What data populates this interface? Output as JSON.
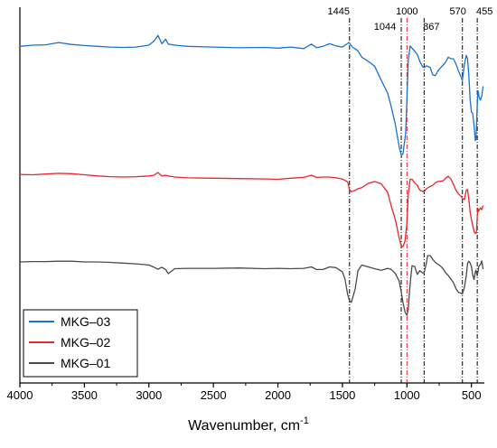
{
  "chart_data": {
    "type": "line",
    "title": "",
    "xlabel": "Wavenumber, cm",
    "xlabel_superscript": "-1",
    "ylabel": "",
    "xlim": [
      4000,
      400
    ],
    "x_reversed": true,
    "x_ticks": [
      4000,
      3500,
      3000,
      2500,
      2000,
      1500,
      1000,
      500
    ],
    "ylim": [
      0,
      100
    ],
    "y_ticks_shown": false,
    "grid": false,
    "legend": {
      "placement": "bottom-left",
      "entries": [
        "MKG–03",
        "MKG–02",
        "MKG–01"
      ]
    },
    "peak_markers": [
      {
        "label": "1445",
        "x": 1445,
        "color": "#000000"
      },
      {
        "label": "1044",
        "x": 1044,
        "color": "#000000"
      },
      {
        "label": "1000",
        "x": 1000,
        "color": "#e8262b"
      },
      {
        "label": "867",
        "x": 867,
        "color": "#000000"
      },
      {
        "label": "570",
        "x": 570,
        "color": "#000000"
      },
      {
        "label": "455",
        "x": 455,
        "color": "#000000"
      }
    ],
    "series": [
      {
        "name": "MKG–03",
        "color": "#1a73cf",
        "x": [
          4000,
          3900,
          3800,
          3700,
          3600,
          3500,
          3400,
          3300,
          3200,
          3100,
          3000,
          2960,
          2930,
          2900,
          2870,
          2850,
          2800,
          2700,
          2500,
          2300,
          2100,
          2000,
          1900,
          1800,
          1740,
          1700,
          1650,
          1600,
          1550,
          1500,
          1450,
          1420,
          1400,
          1380,
          1350,
          1300,
          1250,
          1200,
          1150,
          1120,
          1090,
          1060,
          1044,
          1030,
          1010,
          1000,
          990,
          975,
          960,
          940,
          920,
          900,
          880,
          867,
          850,
          820,
          800,
          780,
          760,
          740,
          720,
          700,
          680,
          660,
          640,
          620,
          600,
          580,
          570,
          555,
          540,
          530,
          520,
          510,
          500,
          490,
          480,
          470,
          465,
          460,
          455,
          450,
          445,
          440,
          430,
          420,
          410
        ],
        "y": [
          89.6,
          89.9,
          90.0,
          90.6,
          90.1,
          89.8,
          89.6,
          89.4,
          89.3,
          89.4,
          89.9,
          91.0,
          92.5,
          90.3,
          91.5,
          90.2,
          89.9,
          89.6,
          89.4,
          89.2,
          89.3,
          89.1,
          89.4,
          89.0,
          90.2,
          89.2,
          89.6,
          90.3,
          89.7,
          89.4,
          90.6,
          89.3,
          88.9,
          88.4,
          86.7,
          85.6,
          84.3,
          80.6,
          77.2,
          73.3,
          68.8,
          62.8,
          60.6,
          61.0,
          66.4,
          75.4,
          85.8,
          89.7,
          89.1,
          88.3,
          87.4,
          85.6,
          84.2,
          83.9,
          84.4,
          84.0,
          82.0,
          81.8,
          83.0,
          83.9,
          84.6,
          85.4,
          86.7,
          86.3,
          86.3,
          84.9,
          83.0,
          81.4,
          80.5,
          84.7,
          87.2,
          86.3,
          81.6,
          75.2,
          72.1,
          71.8,
          68.5,
          64.5,
          64.7,
          69.3,
          73.8,
          77.8,
          77.1,
          76.0,
          75.3,
          76.3,
          79.0
        ]
      },
      {
        "name": "MKG–02",
        "color": "#e8262b",
        "x": [
          4000,
          3900,
          3800,
          3700,
          3600,
          3500,
          3400,
          3300,
          3200,
          3100,
          3000,
          2960,
          2930,
          2900,
          2870,
          2850,
          2800,
          2700,
          2500,
          2300,
          2100,
          2000,
          1900,
          1800,
          1740,
          1700,
          1650,
          1600,
          1550,
          1500,
          1460,
          1445,
          1430,
          1400,
          1380,
          1350,
          1300,
          1250,
          1200,
          1150,
          1120,
          1090,
          1060,
          1044,
          1030,
          1015,
          1000,
          990,
          975,
          960,
          940,
          920,
          900,
          880,
          867,
          850,
          820,
          800,
          780,
          760,
          740,
          720,
          700,
          680,
          660,
          640,
          620,
          600,
          580,
          570,
          555,
          540,
          530,
          520,
          510,
          500,
          490,
          480,
          470,
          465,
          460,
          455,
          450,
          445,
          440,
          430,
          420,
          410
        ],
        "y": [
          55.5,
          55.4,
          55.6,
          55.8,
          55.7,
          55.4,
          55.1,
          54.9,
          54.8,
          54.9,
          55.1,
          55.3,
          56.0,
          55.1,
          55.3,
          55.1,
          54.8,
          54.6,
          54.5,
          54.4,
          54.3,
          54.2,
          54.5,
          54.7,
          55.3,
          54.7,
          54.8,
          54.8,
          54.6,
          54.3,
          53.5,
          51.5,
          50.9,
          51.3,
          51.7,
          52.0,
          53.1,
          53.6,
          53.0,
          50.8,
          46.9,
          43.5,
          38.5,
          36.5,
          36.3,
          37.8,
          42.5,
          50.2,
          54.2,
          54.2,
          53.3,
          52.6,
          51.3,
          51.0,
          50.9,
          51.7,
          52.3,
          52.6,
          53.3,
          53.6,
          53.7,
          53.8,
          54.5,
          55.0,
          54.3,
          52.9,
          51.3,
          50.3,
          49.7,
          49.1,
          48.8,
          51.3,
          51.5,
          48.8,
          45.4,
          43.5,
          42.0,
          40.3,
          39.8,
          39.8,
          40.7,
          44.2,
          46.4,
          45.7,
          46.0,
          46.6,
          46.1,
          47.2
        ]
      },
      {
        "name": "MKG–01",
        "color": "#4a4a4a",
        "x": [
          4000,
          3900,
          3800,
          3700,
          3600,
          3500,
          3400,
          3300,
          3200,
          3100,
          3000,
          2960,
          2930,
          2900,
          2870,
          2850,
          2800,
          2700,
          2500,
          2300,
          2100,
          2000,
          1900,
          1800,
          1740,
          1700,
          1650,
          1600,
          1550,
          1500,
          1480,
          1460,
          1445,
          1430,
          1400,
          1380,
          1350,
          1300,
          1250,
          1200,
          1150,
          1120,
          1090,
          1060,
          1044,
          1030,
          1015,
          1000,
          990,
          980,
          970,
          960,
          940,
          920,
          900,
          880,
          867,
          850,
          840,
          820,
          800,
          780,
          760,
          740,
          720,
          700,
          680,
          660,
          640,
          620,
          600,
          580,
          570,
          555,
          540,
          530,
          520,
          510,
          500,
          490,
          480,
          470,
          465,
          460,
          455,
          450,
          445,
          440,
          430,
          420,
          410
        ],
        "y": [
          32.2,
          32.3,
          32.3,
          32.4,
          32.4,
          32.2,
          32.2,
          32.1,
          31.9,
          31.7,
          31.4,
          30.8,
          30.3,
          30.8,
          30.2,
          29.1,
          30.4,
          30.5,
          30.5,
          30.6,
          30.4,
          30.5,
          30.4,
          30.5,
          30.9,
          30.2,
          30.2,
          30.9,
          30.7,
          29.6,
          27.6,
          23.6,
          21.9,
          21.5,
          25.2,
          29.9,
          31.4,
          30.9,
          30.4,
          30.0,
          30.5,
          30.2,
          29.1,
          27.1,
          24.1,
          21.4,
          18.9,
          18.0,
          19.6,
          24.3,
          28.1,
          31.2,
          31.0,
          28.9,
          29.9,
          29.3,
          29.3,
          31.8,
          33.9,
          33.9,
          32.9,
          32.1,
          31.6,
          31.1,
          30.4,
          29.3,
          28.6,
          27.7,
          26.7,
          25.1,
          24.1,
          23.9,
          23.7,
          25.4,
          28.5,
          31.8,
          32.4,
          31.9,
          31.0,
          28.8,
          27.5,
          29.6,
          30.0,
          29.3,
          28.5,
          29.6,
          30.6,
          31.2,
          31.5,
          32.5,
          30.3
        ]
      }
    ]
  }
}
